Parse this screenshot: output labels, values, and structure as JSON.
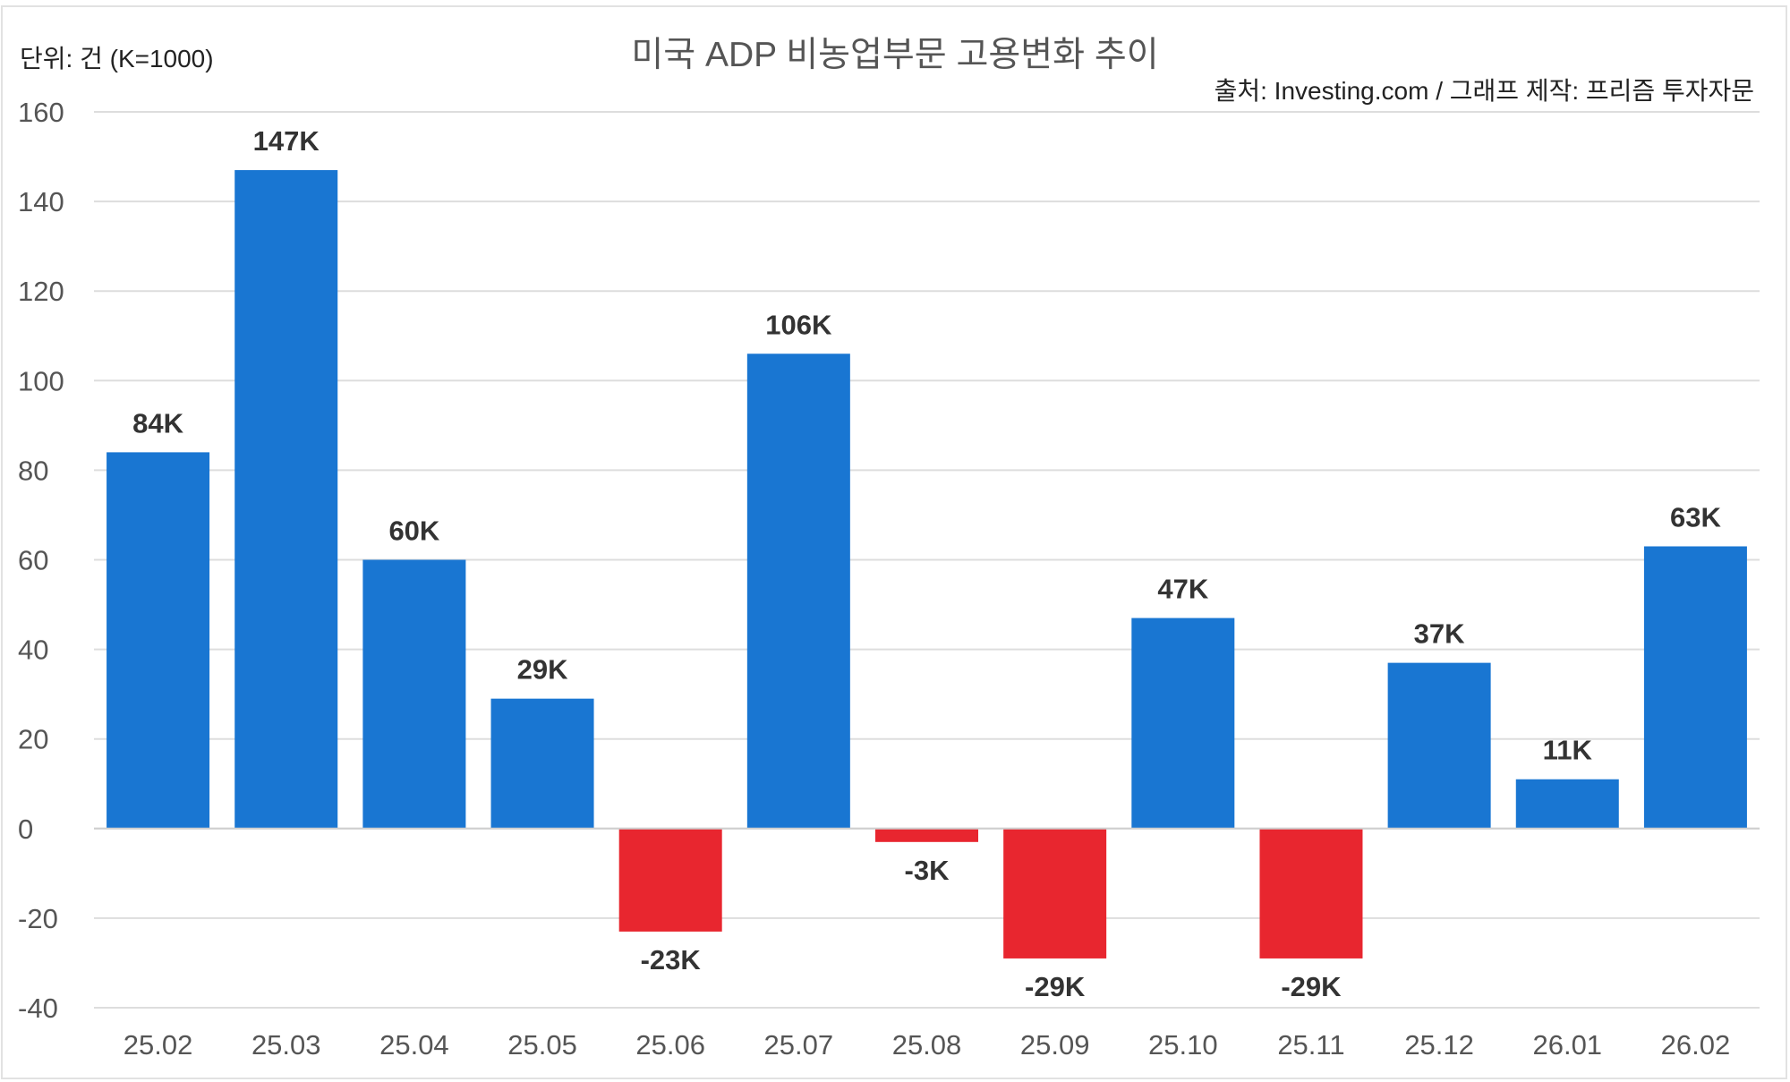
{
  "chart_data": {
    "type": "bar",
    "title": "미국 ADP 비농업부문 고용변화 추이",
    "unit_label": "단위: 건 (K=1000)",
    "source": "출처: Investing.com / 그래프 제작: 프리즘 투자자문",
    "xlabel": "",
    "ylabel": "",
    "categories": [
      "25.02",
      "25.03",
      "25.04",
      "25.05",
      "25.06",
      "25.07",
      "25.08",
      "25.09",
      "25.10",
      "25.11",
      "25.12",
      "26.01",
      "26.02"
    ],
    "values": [
      84,
      147,
      60,
      29,
      -23,
      106,
      -3,
      -29,
      47,
      -29,
      37,
      11,
      63
    ],
    "data_labels": [
      "84K",
      "147K",
      "60K",
      "29K",
      "-23K",
      "106K",
      "-3K",
      "-29K",
      "47K",
      "-29K",
      "37K",
      "11K",
      "63K"
    ],
    "ylim": [
      -40,
      160
    ],
    "yticks": [
      -40,
      -20,
      0,
      20,
      40,
      60,
      80,
      100,
      120,
      140,
      160
    ],
    "grid": true,
    "legend": "none",
    "colors": {
      "positive": "#1976d2",
      "negative": "#e8262f",
      "grid": "#dddddd",
      "tick": "#555555",
      "label": "#333333"
    }
  }
}
